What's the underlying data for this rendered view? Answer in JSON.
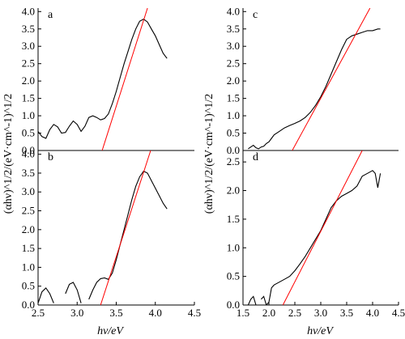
{
  "chart_data": [
    {
      "panel": "a",
      "type": "line",
      "xlim": [
        2.5,
        4.5
      ],
      "ylim": [
        0,
        4.1
      ],
      "yticks": [
        "0.0",
        "0.5",
        "1.0",
        "1.5",
        "2.0",
        "2.5",
        "3.0",
        "3.5",
        "4.0"
      ],
      "xticks": [],
      "series": [
        {
          "color": "#000000",
          "kind": "absorption",
          "x": [
            2.5,
            2.55,
            2.6,
            2.65,
            2.7,
            2.75,
            2.8,
            2.85,
            2.9,
            2.95,
            3.0,
            3.05,
            3.1,
            3.15,
            3.2,
            3.25,
            3.3,
            3.35,
            3.4,
            3.45,
            3.5,
            3.55,
            3.6,
            3.65,
            3.7,
            3.75,
            3.8,
            3.85,
            3.9,
            3.95,
            4.0,
            4.05,
            4.1,
            4.15
          ],
          "y": [
            0.55,
            0.4,
            0.35,
            0.6,
            0.75,
            0.68,
            0.5,
            0.52,
            0.7,
            0.85,
            0.75,
            0.55,
            0.7,
            0.95,
            1.0,
            0.95,
            0.88,
            0.92,
            1.05,
            1.35,
            1.7,
            2.1,
            2.5,
            2.85,
            3.2,
            3.5,
            3.72,
            3.78,
            3.7,
            3.5,
            3.3,
            3.05,
            2.8,
            2.65
          ]
        },
        {
          "color": "#ff0000",
          "kind": "tangent",
          "x": [
            3.32,
            3.9
          ],
          "y": [
            0.0,
            4.1
          ]
        }
      ]
    },
    {
      "panel": "b",
      "type": "line",
      "xlim": [
        2.5,
        4.5
      ],
      "ylim": [
        0,
        4.1
      ],
      "yticks": [
        "0.0",
        "0.5",
        "1.0",
        "1.5",
        "2.0",
        "2.5",
        "3.0",
        "3.5",
        "4.0"
      ],
      "xticks": [
        "2.5",
        "3.0",
        "3.5",
        "4.0",
        "4.5"
      ],
      "xlabel": "hv/eV",
      "series": [
        {
          "color": "#000000",
          "kind": "absorption",
          "x": [
            2.5,
            2.55,
            2.6,
            2.65,
            2.7,
            2.75,
            2.8,
            2.85,
            2.9,
            2.95,
            3.0,
            3.05,
            3.1,
            3.15,
            3.2,
            3.25,
            3.3,
            3.35,
            3.4,
            3.45,
            3.5,
            3.55,
            3.6,
            3.65,
            3.7,
            3.75,
            3.8,
            3.85,
            3.9,
            3.95,
            4.0,
            4.05,
            4.1,
            4.15
          ],
          "y": [
            0.05,
            0.35,
            0.45,
            0.3,
            0.05,
            null,
            null,
            0.3,
            0.55,
            0.6,
            0.4,
            0.05,
            null,
            0.15,
            0.4,
            0.6,
            0.7,
            0.72,
            0.68,
            0.85,
            1.2,
            1.6,
            2.0,
            2.4,
            2.8,
            3.15,
            3.4,
            3.55,
            3.5,
            3.3,
            3.1,
            2.9,
            2.7,
            2.55
          ]
        },
        {
          "color": "#ff0000",
          "kind": "tangent",
          "x": [
            3.3,
            3.94
          ],
          "y": [
            0.0,
            4.1
          ]
        }
      ]
    },
    {
      "panel": "c",
      "type": "line",
      "xlim": [
        1.5,
        4.5
      ],
      "ylim": [
        0,
        4.1
      ],
      "yticks": [
        "0.0",
        "0.5",
        "1.0",
        "1.5",
        "2.0",
        "2.5",
        "3.0",
        "3.5",
        "4.0"
      ],
      "xticks": [],
      "series": [
        {
          "color": "#000000",
          "kind": "absorption",
          "x": [
            1.6,
            1.65,
            1.7,
            1.75,
            1.8,
            1.85,
            1.9,
            1.95,
            2.0,
            2.05,
            2.1,
            2.2,
            2.3,
            2.4,
            2.5,
            2.6,
            2.7,
            2.8,
            2.9,
            3.0,
            3.1,
            3.2,
            3.3,
            3.4,
            3.5,
            3.6,
            3.7,
            3.8,
            3.9,
            4.0,
            4.1,
            4.15
          ],
          "y": [
            0.05,
            0.1,
            0.15,
            0.08,
            0.05,
            0.1,
            0.12,
            0.2,
            0.25,
            0.35,
            0.45,
            0.55,
            0.65,
            0.72,
            0.78,
            0.85,
            0.95,
            1.1,
            1.3,
            1.55,
            1.85,
            2.2,
            2.55,
            2.9,
            3.2,
            3.3,
            3.35,
            3.4,
            3.45,
            3.45,
            3.5,
            3.5
          ]
        },
        {
          "color": "#ff0000",
          "kind": "tangent",
          "x": [
            2.45,
            3.95
          ],
          "y": [
            0.0,
            4.1
          ]
        }
      ]
    },
    {
      "panel": "d",
      "type": "line",
      "xlim": [
        1.5,
        4.5
      ],
      "ylim": [
        0,
        2.7
      ],
      "yticks": [
        "0.0",
        "0.5",
        "1.0",
        "1.5",
        "2.0",
        "2.5"
      ],
      "xticks": [
        "1.5",
        "2.0",
        "2.5",
        "3.0",
        "3.5",
        "4.0",
        "4.5"
      ],
      "xlabel": "hv/eV",
      "series": [
        {
          "color": "#000000",
          "kind": "absorption",
          "x": [
            1.6,
            1.65,
            1.7,
            1.75,
            1.8,
            1.85,
            1.9,
            1.95,
            2.0,
            2.05,
            2.1,
            2.2,
            2.3,
            2.4,
            2.5,
            2.6,
            2.7,
            2.8,
            2.9,
            3.0,
            3.1,
            3.2,
            3.3,
            3.4,
            3.5,
            3.6,
            3.7,
            3.8,
            3.9,
            4.0,
            4.05,
            4.1,
            4.15
          ],
          "y": [
            0.0,
            0.1,
            0.15,
            0.0,
            null,
            0.1,
            0.15,
            0.0,
            0.05,
            0.3,
            0.35,
            0.4,
            0.45,
            0.5,
            0.6,
            0.72,
            0.85,
            1.0,
            1.15,
            1.3,
            1.5,
            1.7,
            1.82,
            1.9,
            1.95,
            2.0,
            2.08,
            2.25,
            2.3,
            2.35,
            2.3,
            2.05,
            2.3
          ]
        },
        {
          "color": "#ff0000",
          "kind": "tangent",
          "x": [
            2.27,
            3.8
          ],
          "y": [
            0.0,
            2.7
          ]
        }
      ]
    }
  ],
  "ylabel_left": "(αhν)^1/2/(eV·cm^-1)^1/2",
  "ylabel_right": "(αhν)^1/2/(eV·cm^-1)^1/2",
  "xlabel_left": "hv/eV",
  "xlabel_right": "hv/eV"
}
